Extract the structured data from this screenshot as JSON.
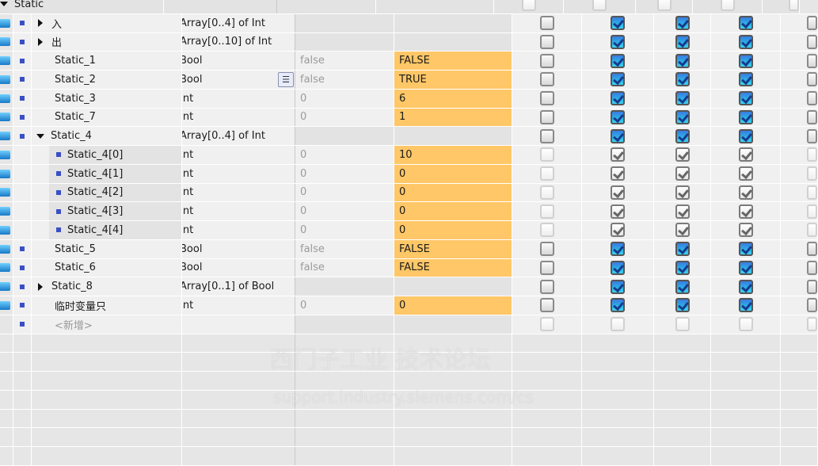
{
  "colors": {
    "start_value_highlight": "#ffc767",
    "checked": "#2ab4e8",
    "bullet": "#3a4fc4"
  },
  "rows": [
    {
      "name": "Static",
      "type": "",
      "default": "",
      "start": "",
      "level": 0,
      "expander": "down",
      "kind": "header",
      "checks": [
        "dis",
        "dis",
        "dis",
        "dis",
        "dis"
      ]
    },
    {
      "name": "入",
      "type": "Array[0..4] of Int",
      "default": "",
      "start": "",
      "level": 1,
      "expander": "right",
      "kind": "array",
      "checks": [
        "off",
        "on",
        "on",
        "on",
        "off"
      ]
    },
    {
      "name": "出",
      "type": "Array[0..10] of Int",
      "default": "",
      "start": "",
      "level": 1,
      "expander": "right",
      "kind": "array",
      "checks": [
        "off",
        "on",
        "on",
        "on",
        "off"
      ]
    },
    {
      "name": "Static_1",
      "type": "Bool",
      "default": "false",
      "start": "FALSE",
      "level": 1,
      "kind": "value",
      "checks": [
        "off",
        "on",
        "on",
        "on",
        "off"
      ]
    },
    {
      "name": "Static_2",
      "type": "Bool",
      "default": "false",
      "start": "TRUE",
      "level": 1,
      "kind": "value",
      "list_button": true,
      "checks": [
        "off",
        "on",
        "on",
        "on",
        "off"
      ]
    },
    {
      "name": "Static_3",
      "type": "Int",
      "default": "0",
      "start": "6",
      "level": 1,
      "kind": "value",
      "checks": [
        "off",
        "on",
        "on",
        "on",
        "off"
      ]
    },
    {
      "name": "Static_7",
      "type": "Int",
      "default": "0",
      "start": "1",
      "level": 1,
      "kind": "value",
      "checks": [
        "off",
        "on",
        "on",
        "on",
        "off"
      ]
    },
    {
      "name": "Static_4",
      "type": "Array[0..4] of Int",
      "default": "",
      "start": "",
      "level": 1,
      "expander": "down",
      "kind": "array",
      "checks": [
        "off",
        "on",
        "on",
        "on",
        "off"
      ]
    },
    {
      "name": "Static_4[0]",
      "type": "Int",
      "default": "0",
      "start": "10",
      "level": 2,
      "kind": "value",
      "checks": [
        "dis",
        "gon",
        "gon",
        "gon",
        "dis"
      ]
    },
    {
      "name": "Static_4[1]",
      "type": "Int",
      "default": "0",
      "start": "0",
      "level": 2,
      "kind": "value",
      "checks": [
        "dis",
        "gon",
        "gon",
        "gon",
        "dis"
      ]
    },
    {
      "name": "Static_4[2]",
      "type": "Int",
      "default": "0",
      "start": "0",
      "level": 2,
      "kind": "value",
      "checks": [
        "dis",
        "gon",
        "gon",
        "gon",
        "dis"
      ]
    },
    {
      "name": "Static_4[3]",
      "type": "Int",
      "default": "0",
      "start": "0",
      "level": 2,
      "kind": "value",
      "checks": [
        "dis",
        "gon",
        "gon",
        "gon",
        "dis"
      ]
    },
    {
      "name": "Static_4[4]",
      "type": "Int",
      "default": "0",
      "start": "0",
      "level": 2,
      "kind": "value",
      "checks": [
        "dis",
        "gon",
        "gon",
        "gon",
        "dis"
      ]
    },
    {
      "name": "Static_5",
      "type": "Bool",
      "default": "false",
      "start": "FALSE",
      "level": 1,
      "kind": "value",
      "checks": [
        "off",
        "on",
        "on",
        "on",
        "off"
      ]
    },
    {
      "name": "Static_6",
      "type": "Bool",
      "default": "false",
      "start": "FALSE",
      "level": 1,
      "kind": "value",
      "checks": [
        "off",
        "on",
        "on",
        "on",
        "off"
      ]
    },
    {
      "name": "Static_8",
      "type": "Array[0..1] of Bool",
      "default": "",
      "start": "",
      "level": 1,
      "expander": "right",
      "kind": "array",
      "checks": [
        "off",
        "on",
        "on",
        "on",
        "off"
      ]
    },
    {
      "name": "临时变量只",
      "type": "Int",
      "default": "0",
      "start": "0",
      "level": 1,
      "kind": "value",
      "checks": [
        "off",
        "on",
        "on",
        "on",
        "off"
      ]
    },
    {
      "name": "<新增>",
      "type": "",
      "default": "",
      "start": "",
      "level": 1,
      "kind": "new",
      "checks": [
        "dis",
        "dis",
        "dis",
        "dis",
        "dis"
      ]
    }
  ],
  "empty_rows": 7,
  "watermark": {
    "line1": "西门子工业  技术论坛",
    "line2": "support.industry.siemens.com/cs"
  }
}
